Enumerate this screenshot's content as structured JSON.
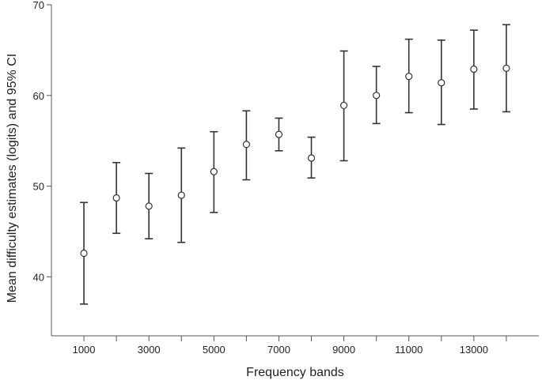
{
  "chart_data": {
    "type": "scatter",
    "xlabel": "Frequency bands",
    "ylabel": "Mean difficulty estimates (logits) and 95% CI",
    "xlim": [
      0,
      15000
    ],
    "ylim": [
      33.5,
      70
    ],
    "grid": false,
    "x_ticks": [
      1000,
      2000,
      3000,
      4000,
      5000,
      6000,
      7000,
      8000,
      9000,
      10000,
      11000,
      12000,
      13000,
      14000
    ],
    "x_tick_labels": [
      "1000",
      "",
      "3000",
      "",
      "5000",
      "",
      "7000",
      "",
      "9000",
      "",
      "11000",
      "",
      "13000",
      ""
    ],
    "y_ticks": [
      40,
      50,
      60,
      70
    ],
    "y_tick_labels": [
      "40",
      "50",
      "60",
      "70"
    ],
    "series": [
      {
        "x": [
          1000,
          2000,
          3000,
          4000,
          5000,
          6000,
          7000,
          8000,
          9000,
          10000,
          11000,
          12000,
          13000,
          14000
        ],
        "mean": [
          42.6,
          48.7,
          47.8,
          49.0,
          51.6,
          54.6,
          55.7,
          53.1,
          58.9,
          60.0,
          62.1,
          61.4,
          62.9,
          63.0
        ],
        "ci_lower": [
          37.0,
          44.8,
          44.2,
          43.8,
          47.1,
          50.7,
          53.9,
          50.9,
          52.8,
          56.9,
          58.1,
          56.8,
          58.5,
          58.2
        ],
        "ci_upper": [
          48.2,
          52.6,
          51.4,
          54.2,
          56.0,
          58.3,
          57.5,
          55.4,
          64.9,
          63.2,
          66.2,
          66.1,
          67.2,
          67.8
        ]
      }
    ]
  }
}
